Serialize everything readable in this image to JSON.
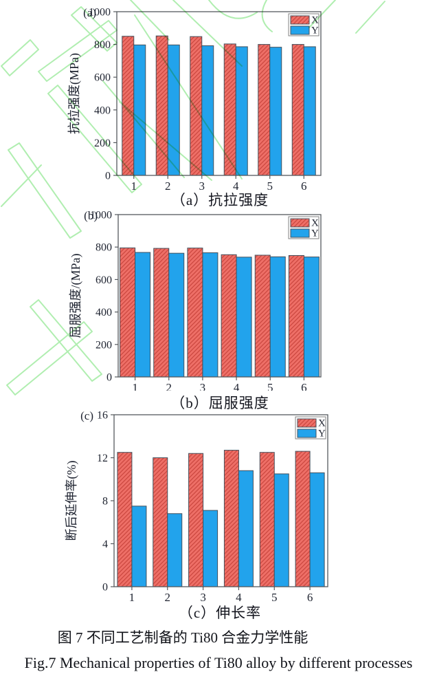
{
  "page": {
    "background": "#ffffff"
  },
  "watermark": {
    "color": "#7fe37f",
    "opacity": 0.62
  },
  "colors": {
    "bar_x_fill": "#ee6f67",
    "bar_x_hatch": "#cc4840",
    "bar_y_fill": "#22a3ec",
    "bar_edge": "#44505c",
    "axis": "#55595e",
    "text": "#1e2330",
    "legend_border": "#828282",
    "plot_background": "#ffffff"
  },
  "captions": {
    "zh": "图 7 不同工艺制备的 Ti80 合金力学性能",
    "en": "Fig.7 Mechanical properties of Ti80 alloy by different processes"
  },
  "chart_data": [
    {
      "type": "bar",
      "panel_label": "(a)",
      "caption": "（a）抗拉强度",
      "ylabel": "抗拉强度(MPa)",
      "xlabel": "",
      "categories": [
        "1",
        "2",
        "3",
        "4",
        "5",
        "6"
      ],
      "series": [
        {
          "name": "X",
          "hatch": true,
          "values": [
            850,
            852,
            848,
            803,
            800,
            800
          ]
        },
        {
          "name": "Y",
          "hatch": false,
          "values": [
            797,
            797,
            792,
            786,
            783,
            786
          ]
        }
      ],
      "ylim": [
        0,
        1000
      ],
      "ytick_step": 200,
      "grid": false,
      "legend_position": "top-right"
    },
    {
      "type": "bar",
      "panel_label": "(b)",
      "caption": "（b）屈服强度",
      "ylabel": "屈服强度/(MPa)",
      "xlabel": "",
      "categories": [
        "1",
        "2",
        "3",
        "4",
        "5",
        "6"
      ],
      "series": [
        {
          "name": "X",
          "hatch": true,
          "values": [
            795,
            792,
            794,
            753,
            750,
            748
          ]
        },
        {
          "name": "Y",
          "hatch": false,
          "values": [
            767,
            762,
            765,
            738,
            740,
            739
          ]
        }
      ],
      "ylim": [
        0,
        1000
      ],
      "ytick_step": 200,
      "grid": false,
      "legend_position": "top-right"
    },
    {
      "type": "bar",
      "panel_label": "(c)",
      "caption": "（c）伸长率",
      "ylabel": "断后延伸率(%)",
      "xlabel": "",
      "categories": [
        "1",
        "2",
        "3",
        "4",
        "5",
        "6"
      ],
      "series": [
        {
          "name": "X",
          "hatch": true,
          "values": [
            12.5,
            12.0,
            12.4,
            12.7,
            12.5,
            12.6
          ]
        },
        {
          "name": "Y",
          "hatch": false,
          "values": [
            7.5,
            6.8,
            7.1,
            10.8,
            10.5,
            10.6
          ]
        }
      ],
      "ylim": [
        0,
        16
      ],
      "ytick_step": 4,
      "grid": false,
      "legend_position": "top-right"
    }
  ]
}
